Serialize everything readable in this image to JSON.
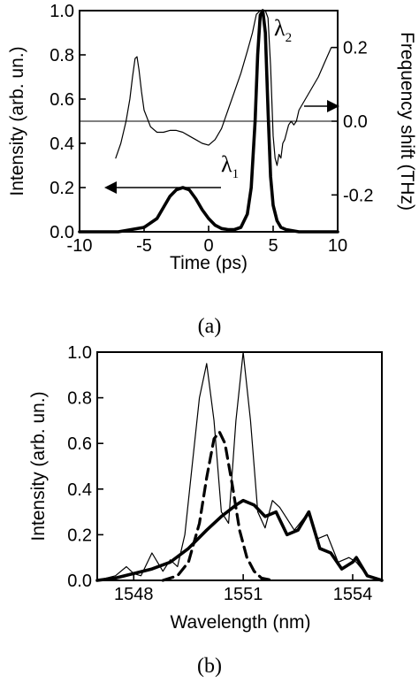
{
  "chart_data": [
    {
      "type": "line",
      "panel_label": "(a)",
      "xlabel": "Time (ps)",
      "ylabel": "Intensity (arb. un.)",
      "ylabel_right": "Frequency shift (THz)",
      "xlim": [
        -10,
        10
      ],
      "ylim": [
        0,
        1.0
      ],
      "ylim_right": [
        -0.3,
        0.3
      ],
      "x_ticks": [
        "-10",
        "-5",
        "0",
        "5",
        "10"
      ],
      "x_tick_values": [
        -10,
        -5,
        0,
        5,
        10
      ],
      "y_ticks": [
        "0.0",
        "0.2",
        "0.4",
        "0.6",
        "0.8",
        "1.0"
      ],
      "y_tick_values": [
        0,
        0.2,
        0.4,
        0.6,
        0.8,
        1.0
      ],
      "y_right_ticks": [
        "-0.2",
        "0.0",
        "0.2"
      ],
      "y_right_tick_values": [
        -0.2,
        0.0,
        0.2
      ],
      "annotations": {
        "lambda1": {
          "base": "λ",
          "sub": "1"
        },
        "lambda2": {
          "base": "λ",
          "sub": "2"
        }
      },
      "reference_line_right": 0.0,
      "series": [
        {
          "axis": "left",
          "style": "thick",
          "x": [
            -10,
            -7,
            -6,
            -5,
            -4,
            -3.5,
            -3,
            -2.5,
            -2,
            -1.5,
            -1,
            -0.5,
            0,
            0.5,
            1,
            1.5,
            2,
            2.5,
            3,
            3.3,
            3.6,
            3.8,
            4.0,
            4.2,
            4.4,
            4.6,
            4.8,
            5.0,
            5.3,
            5.6,
            6,
            7,
            8,
            10
          ],
          "y": [
            0.0,
            0.0,
            0.01,
            0.02,
            0.06,
            0.11,
            0.16,
            0.19,
            0.2,
            0.19,
            0.15,
            0.1,
            0.06,
            0.03,
            0.015,
            0.01,
            0.01,
            0.02,
            0.08,
            0.2,
            0.5,
            0.8,
            0.98,
            1.0,
            0.9,
            0.55,
            0.25,
            0.12,
            0.05,
            0.02,
            0.01,
            0.0,
            0.0,
            0.0
          ]
        },
        {
          "axis": "right",
          "style": "thin",
          "x": [
            -7.2,
            -6.8,
            -6.4,
            -6.1,
            -5.9,
            -5.7,
            -5.55,
            -5.4,
            -5.2,
            -5.0,
            -4.5,
            -4.0,
            -3.5,
            -3.0,
            -2.5,
            -2.0,
            -1.5,
            -1.0,
            -0.5,
            0.0,
            0.5,
            1.0,
            1.5,
            2.0,
            2.5,
            3.0,
            3.4,
            3.7,
            4.0,
            4.2,
            4.4,
            4.6,
            4.8,
            5.0,
            5.15,
            5.3,
            5.45,
            5.6,
            5.75,
            5.9,
            6.05,
            6.2,
            6.4,
            6.6,
            6.8,
            7.0,
            7.5,
            8.0,
            8.5,
            9.0,
            9.5
          ],
          "y": [
            -0.1,
            -0.06,
            0.0,
            0.06,
            0.12,
            0.17,
            0.175,
            0.14,
            0.08,
            0.03,
            -0.015,
            -0.03,
            -0.03,
            -0.025,
            -0.025,
            -0.03,
            -0.04,
            -0.05,
            -0.06,
            -0.065,
            -0.05,
            -0.02,
            0.03,
            0.08,
            0.13,
            0.19,
            0.24,
            0.29,
            0.3,
            0.3,
            0.3,
            0.28,
            0.15,
            -0.04,
            -0.1,
            -0.12,
            -0.09,
            -0.1,
            -0.06,
            -0.05,
            -0.03,
            -0.01,
            0.0,
            -0.01,
            0.0,
            0.03,
            0.06,
            0.09,
            0.12,
            0.16,
            0.2
          ]
        }
      ]
    },
    {
      "type": "line",
      "panel_label": "(b)",
      "xlabel": "Wavelength (nm)",
      "ylabel": "Intensity (arb. un.)",
      "xlim": [
        1547,
        1554.8
      ],
      "ylim": [
        0,
        1.0
      ],
      "x_ticks": [
        "1548",
        "1551",
        "1554"
      ],
      "x_tick_values": [
        1548,
        1551,
        1554
      ],
      "y_ticks": [
        "0.0",
        "0.2",
        "0.4",
        "0.6",
        "0.8",
        "1.0"
      ],
      "y_tick_values": [
        0,
        0.2,
        0.4,
        0.6,
        0.8,
        1.0
      ],
      "series": [
        {
          "style": "thin",
          "x": [
            1547,
            1547.5,
            1547.8,
            1548.0,
            1548.2,
            1548.5,
            1548.8,
            1549.0,
            1549.2,
            1549.4,
            1549.6,
            1549.8,
            1550.0,
            1550.2,
            1550.4,
            1550.6,
            1550.8,
            1551.0,
            1551.2,
            1551.4,
            1551.6,
            1551.8,
            1552.0,
            1552.2,
            1552.4,
            1552.6,
            1552.8,
            1553.0,
            1553.3,
            1553.6,
            1553.9,
            1554.1,
            1554.4,
            1554.8
          ],
          "y": [
            0.0,
            0.02,
            0.06,
            0.03,
            0.02,
            0.12,
            0.04,
            0.09,
            0.06,
            0.2,
            0.5,
            0.8,
            0.95,
            0.7,
            0.3,
            0.25,
            0.7,
            1.0,
            0.7,
            0.3,
            0.23,
            0.35,
            0.32,
            0.27,
            0.22,
            0.26,
            0.3,
            0.18,
            0.2,
            0.08,
            0.1,
            0.08,
            0.02,
            0.0
          ]
        },
        {
          "style": "thick",
          "x": [
            1547,
            1547.5,
            1548.0,
            1548.5,
            1549.0,
            1549.5,
            1550.0,
            1550.4,
            1550.8,
            1551.0,
            1551.3,
            1551.6,
            1551.9,
            1552.2,
            1552.5,
            1552.8,
            1553.1,
            1553.4,
            1553.7,
            1554.0,
            1554.1,
            1554.4,
            1554.8
          ],
          "y": [
            0.0,
            0.01,
            0.03,
            0.05,
            0.08,
            0.14,
            0.22,
            0.28,
            0.33,
            0.35,
            0.33,
            0.28,
            0.3,
            0.2,
            0.22,
            0.3,
            0.14,
            0.12,
            0.05,
            0.08,
            0.1,
            0.02,
            0.0
          ]
        },
        {
          "style": "dashed",
          "x": [
            1548.8,
            1549.2,
            1549.5,
            1549.8,
            1550.0,
            1550.2,
            1550.35,
            1550.5,
            1550.7,
            1550.9,
            1551.1,
            1551.3,
            1551.5,
            1551.8
          ],
          "y": [
            0.0,
            0.02,
            0.08,
            0.25,
            0.45,
            0.62,
            0.65,
            0.6,
            0.42,
            0.22,
            0.1,
            0.04,
            0.01,
            0.0
          ]
        }
      ]
    }
  ]
}
